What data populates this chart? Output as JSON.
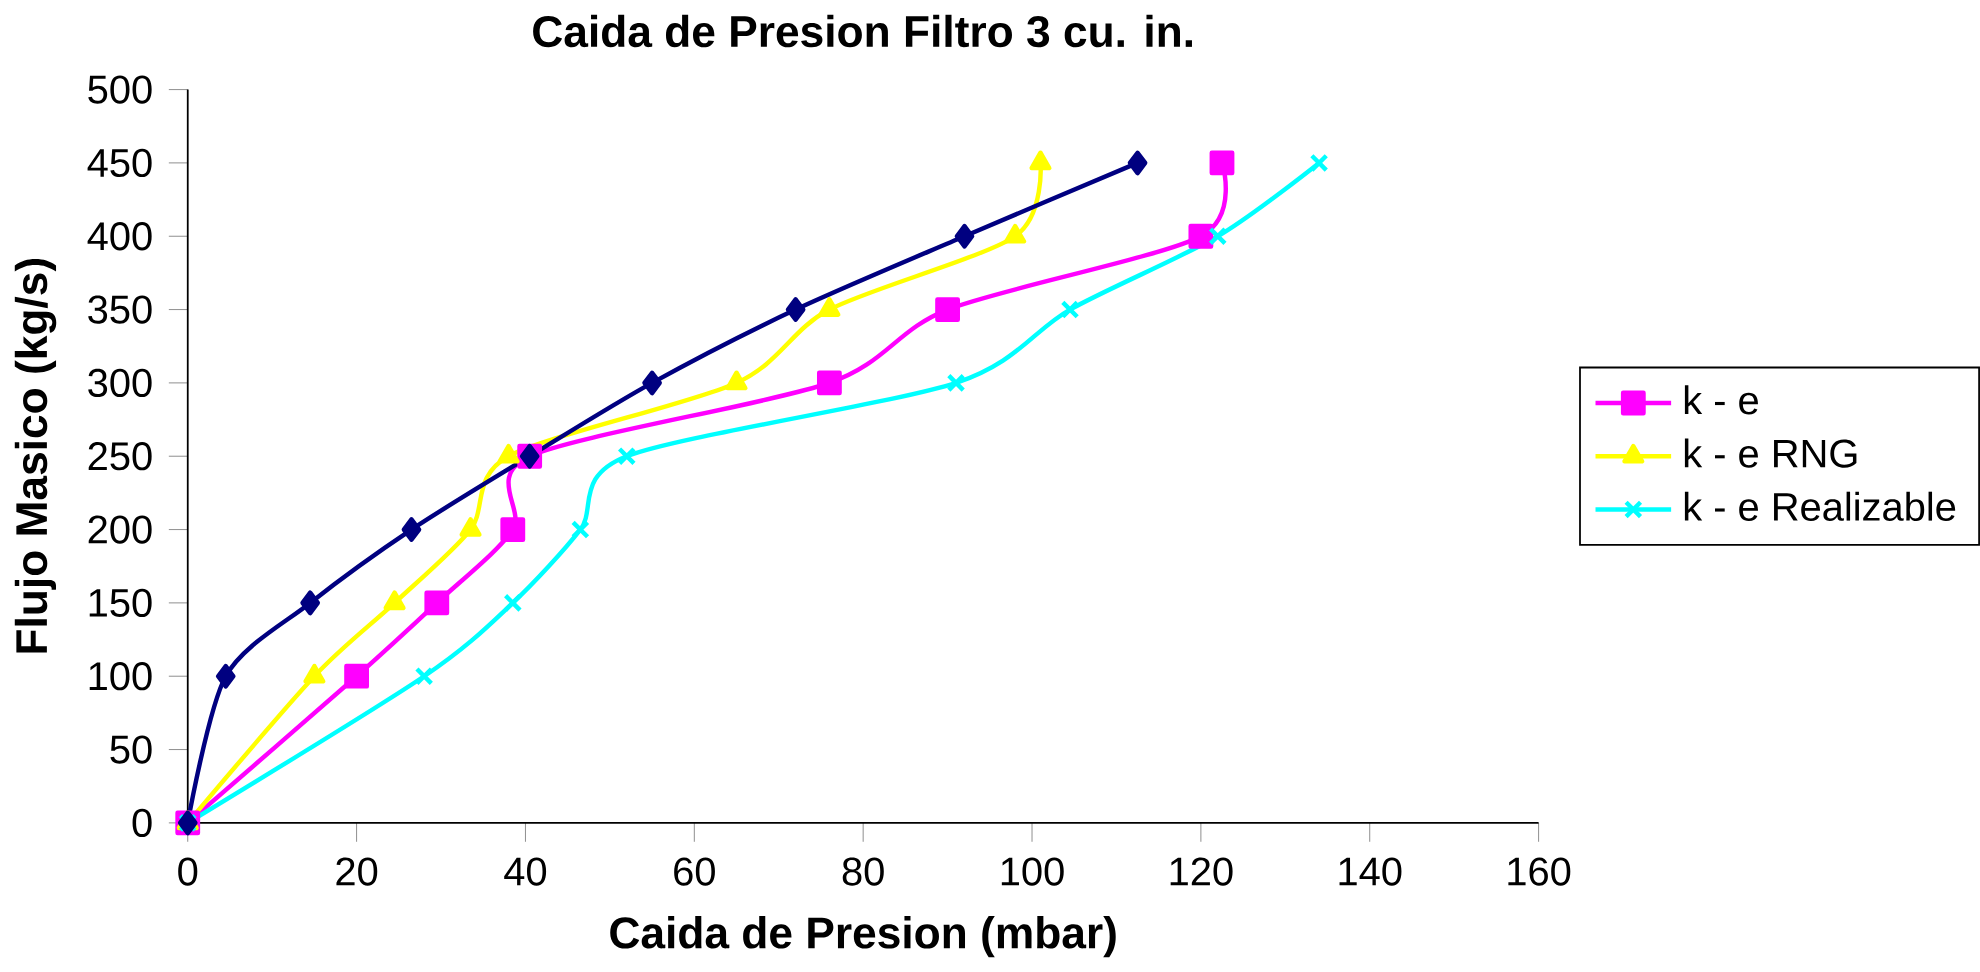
{
  "chart_data": {
    "type": "line",
    "title": "Caida de Presion Filtro 3 cu. in.",
    "xlabel": "Caida de Presion (mbar)",
    "ylabel": "Flujo Masico (kg/s)",
    "xlim": [
      0,
      160
    ],
    "xticks": [
      0,
      20,
      40,
      60,
      80,
      100,
      120,
      140,
      160
    ],
    "ylim": [
      0,
      500
    ],
    "yticks": [
      0,
      50,
      100,
      150,
      200,
      250,
      300,
      350,
      400,
      450,
      500
    ],
    "grid": false,
    "legend": "right",
    "series": [
      {
        "color": "#000080",
        "marker": "diamond",
        "x": [
          0,
          4.5,
          14.5,
          26.5,
          40.5,
          55,
          72,
          92,
          112.5
        ],
        "values": [
          0,
          100,
          150,
          200,
          250,
          300,
          350,
          400,
          450
        ]
      },
      {
        "name": "k - e",
        "color": "#ff00ff",
        "marker": "square",
        "x": [
          0,
          20,
          29.5,
          38.5,
          40.5,
          76,
          90,
          120,
          122.5
        ],
        "values": [
          0,
          100,
          150,
          200,
          250,
          300,
          350,
          400,
          450
        ]
      },
      {
        "name": "k - e RNG",
        "color": "#ffff00",
        "marker": "triangle",
        "x": [
          0,
          15,
          24.5,
          33.5,
          38,
          65,
          76,
          98,
          101
        ],
        "values": [
          0,
          100,
          150,
          200,
          250,
          300,
          350,
          400,
          450
        ]
      },
      {
        "name": "k - e Realizable",
        "color": "#00ffff",
        "marker": "cross",
        "x": [
          0,
          28,
          38.5,
          46.5,
          52,
          91,
          104.5,
          122,
          134
        ],
        "values": [
          0,
          100,
          150,
          200,
          250,
          300,
          350,
          400,
          450
        ]
      }
    ]
  }
}
